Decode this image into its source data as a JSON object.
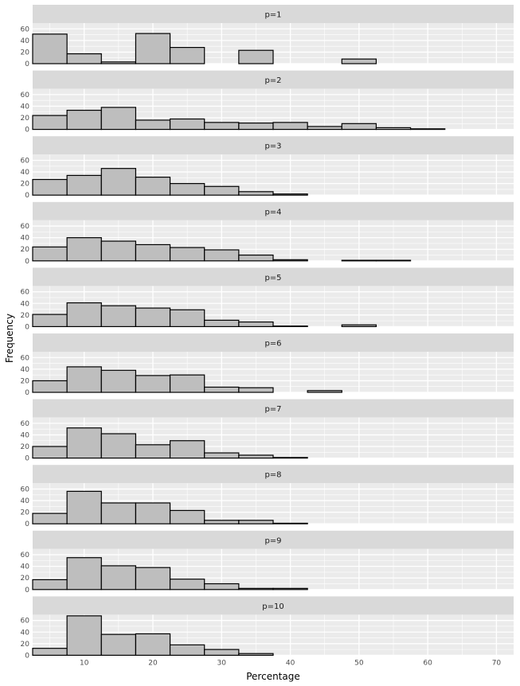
{
  "chart_data": {
    "type": "bar",
    "xlabel": "Percentage",
    "ylabel": "Frequency",
    "xlim": [
      2.5,
      72.5
    ],
    "ylim": [
      0,
      70
    ],
    "x_ticks": [
      10,
      20,
      30,
      40,
      50,
      60,
      70
    ],
    "y_ticks": [
      0,
      20,
      40,
      60
    ],
    "bin_starts": [
      2.5,
      7.5,
      12.5,
      17.5,
      22.5,
      27.5,
      32.5,
      37.5,
      42.5,
      47.5,
      52.5,
      57.5,
      62.5,
      67.5
    ],
    "bin_width": 5,
    "grid": true,
    "panels": [
      {
        "label": "p=1",
        "values": [
          51,
          17,
          3,
          52,
          28,
          0,
          23,
          0,
          0,
          8,
          0,
          0,
          0,
          0
        ]
      },
      {
        "label": "p=2",
        "values": [
          24,
          33,
          38,
          16,
          18,
          12,
          11,
          12,
          5,
          10,
          3,
          1,
          0,
          0
        ]
      },
      {
        "label": "p=3",
        "values": [
          27,
          34,
          46,
          31,
          20,
          15,
          6,
          2,
          0,
          0,
          0,
          0,
          0,
          0
        ]
      },
      {
        "label": "p=4",
        "values": [
          24,
          40,
          34,
          28,
          23,
          19,
          10,
          2,
          0,
          1,
          1,
          0,
          0,
          0
        ]
      },
      {
        "label": "p=5",
        "values": [
          21,
          41,
          36,
          32,
          29,
          11,
          8,
          1,
          0,
          3,
          0,
          0,
          0,
          0
        ]
      },
      {
        "label": "p=6",
        "values": [
          20,
          44,
          38,
          29,
          30,
          9,
          8,
          0,
          3,
          0,
          0,
          0,
          0,
          0
        ]
      },
      {
        "label": "p=7",
        "values": [
          20,
          52,
          42,
          23,
          30,
          9,
          5,
          1,
          0,
          0,
          0,
          0,
          0,
          0
        ]
      },
      {
        "label": "p=8",
        "values": [
          18,
          56,
          36,
          36,
          23,
          6,
          6,
          1,
          0,
          0,
          0,
          0,
          0,
          0
        ]
      },
      {
        "label": "p=9",
        "values": [
          17,
          55,
          41,
          38,
          18,
          10,
          2,
          2,
          0,
          0,
          0,
          0,
          0,
          0
        ]
      },
      {
        "label": "p=10",
        "values": [
          12,
          68,
          36,
          37,
          18,
          10,
          3,
          0,
          0,
          0,
          0,
          0,
          0,
          0
        ]
      }
    ]
  },
  "colors": {
    "panel_bg": "#ebebeb",
    "strip_bg": "#d9d9d9",
    "grid_major": "#ffffff",
    "bar_fill": "#bebebe",
    "bar_stroke": "#000000"
  }
}
